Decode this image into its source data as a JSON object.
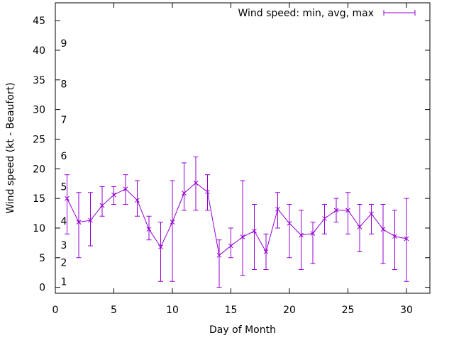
{
  "chart_data": {
    "type": "line",
    "xlabel": "Day of Month",
    "ylabel": "Wind speed (kt - Beaufort)",
    "xlim": [
      0,
      32
    ],
    "ylim": [
      -1,
      48
    ],
    "x_ticks": [
      "0",
      "5",
      "10",
      "15",
      "20",
      "25",
      "30"
    ],
    "y_ticks": [
      "0",
      "5",
      "10",
      "15",
      "20",
      "25",
      "30",
      "35",
      "40",
      "45"
    ],
    "grid": false,
    "legend_position": "top-right",
    "beaufort_labels": [
      {
        "text": "1",
        "y": 1
      },
      {
        "text": "2",
        "y": 4.2
      },
      {
        "text": "3",
        "y": 7.1
      },
      {
        "text": "4",
        "y": 11.2
      },
      {
        "text": "5",
        "y": 17
      },
      {
        "text": "6",
        "y": 22.2
      },
      {
        "text": "7",
        "y": 28.3
      },
      {
        "text": "8",
        "y": 34.3
      },
      {
        "text": "9",
        "y": 41.2
      }
    ],
    "series": [
      {
        "name": "Wind speed: min, avg, max",
        "color": "#9400d3",
        "points": [
          {
            "x": 1,
            "avg": 15,
            "min": 9,
            "max": 19
          },
          {
            "x": 2,
            "avg": 11,
            "min": 5,
            "max": 16
          },
          {
            "x": 3,
            "avg": 11.3,
            "min": 7,
            "max": 16
          },
          {
            "x": 4,
            "avg": 13.8,
            "min": 12,
            "max": 17
          },
          {
            "x": 5,
            "avg": 15.6,
            "min": 14,
            "max": 17
          },
          {
            "x": 6,
            "avg": 16.6,
            "min": 14,
            "max": 19
          },
          {
            "x": 7,
            "avg": 14.7,
            "min": 12,
            "max": 18
          },
          {
            "x": 8,
            "avg": 9.8,
            "min": 8,
            "max": 12
          },
          {
            "x": 9,
            "avg": 6.8,
            "min": 1,
            "max": 11
          },
          {
            "x": 10,
            "avg": 11,
            "min": 1,
            "max": 18
          },
          {
            "x": 11,
            "avg": 15.9,
            "min": 13,
            "max": 21
          },
          {
            "x": 12,
            "avg": 17.6,
            "min": 13,
            "max": 22
          },
          {
            "x": 13,
            "avg": 16.1,
            "min": 13,
            "max": 19
          },
          {
            "x": 14,
            "avg": 5.4,
            "min": 0,
            "max": 8
          },
          {
            "x": 15,
            "avg": 7,
            "min": 5,
            "max": 10
          },
          {
            "x": 16,
            "avg": 8.5,
            "min": 2,
            "max": 18
          },
          {
            "x": 17,
            "avg": 9.5,
            "min": 3,
            "max": 14
          },
          {
            "x": 18,
            "avg": 6,
            "min": 3,
            "max": 9
          },
          {
            "x": 19,
            "avg": 13.2,
            "min": 10,
            "max": 16
          },
          {
            "x": 20,
            "avg": 10.8,
            "min": 5,
            "max": 14
          },
          {
            "x": 21,
            "avg": 8.8,
            "min": 3,
            "max": 13
          },
          {
            "x": 22,
            "avg": 9.1,
            "min": 4,
            "max": 11
          },
          {
            "x": 23,
            "avg": 11.6,
            "min": 9,
            "max": 14
          },
          {
            "x": 24,
            "avg": 13,
            "min": 11,
            "max": 15
          },
          {
            "x": 25,
            "avg": 13,
            "min": 9,
            "max": 16
          },
          {
            "x": 26,
            "avg": 10.2,
            "min": 6,
            "max": 14
          },
          {
            "x": 27,
            "avg": 12.4,
            "min": 9,
            "max": 14
          },
          {
            "x": 28,
            "avg": 9.8,
            "min": 4,
            "max": 14
          },
          {
            "x": 29,
            "avg": 8.6,
            "min": 3,
            "max": 13
          },
          {
            "x": 30,
            "avg": 8.2,
            "min": 1,
            "max": 15
          }
        ]
      }
    ]
  }
}
